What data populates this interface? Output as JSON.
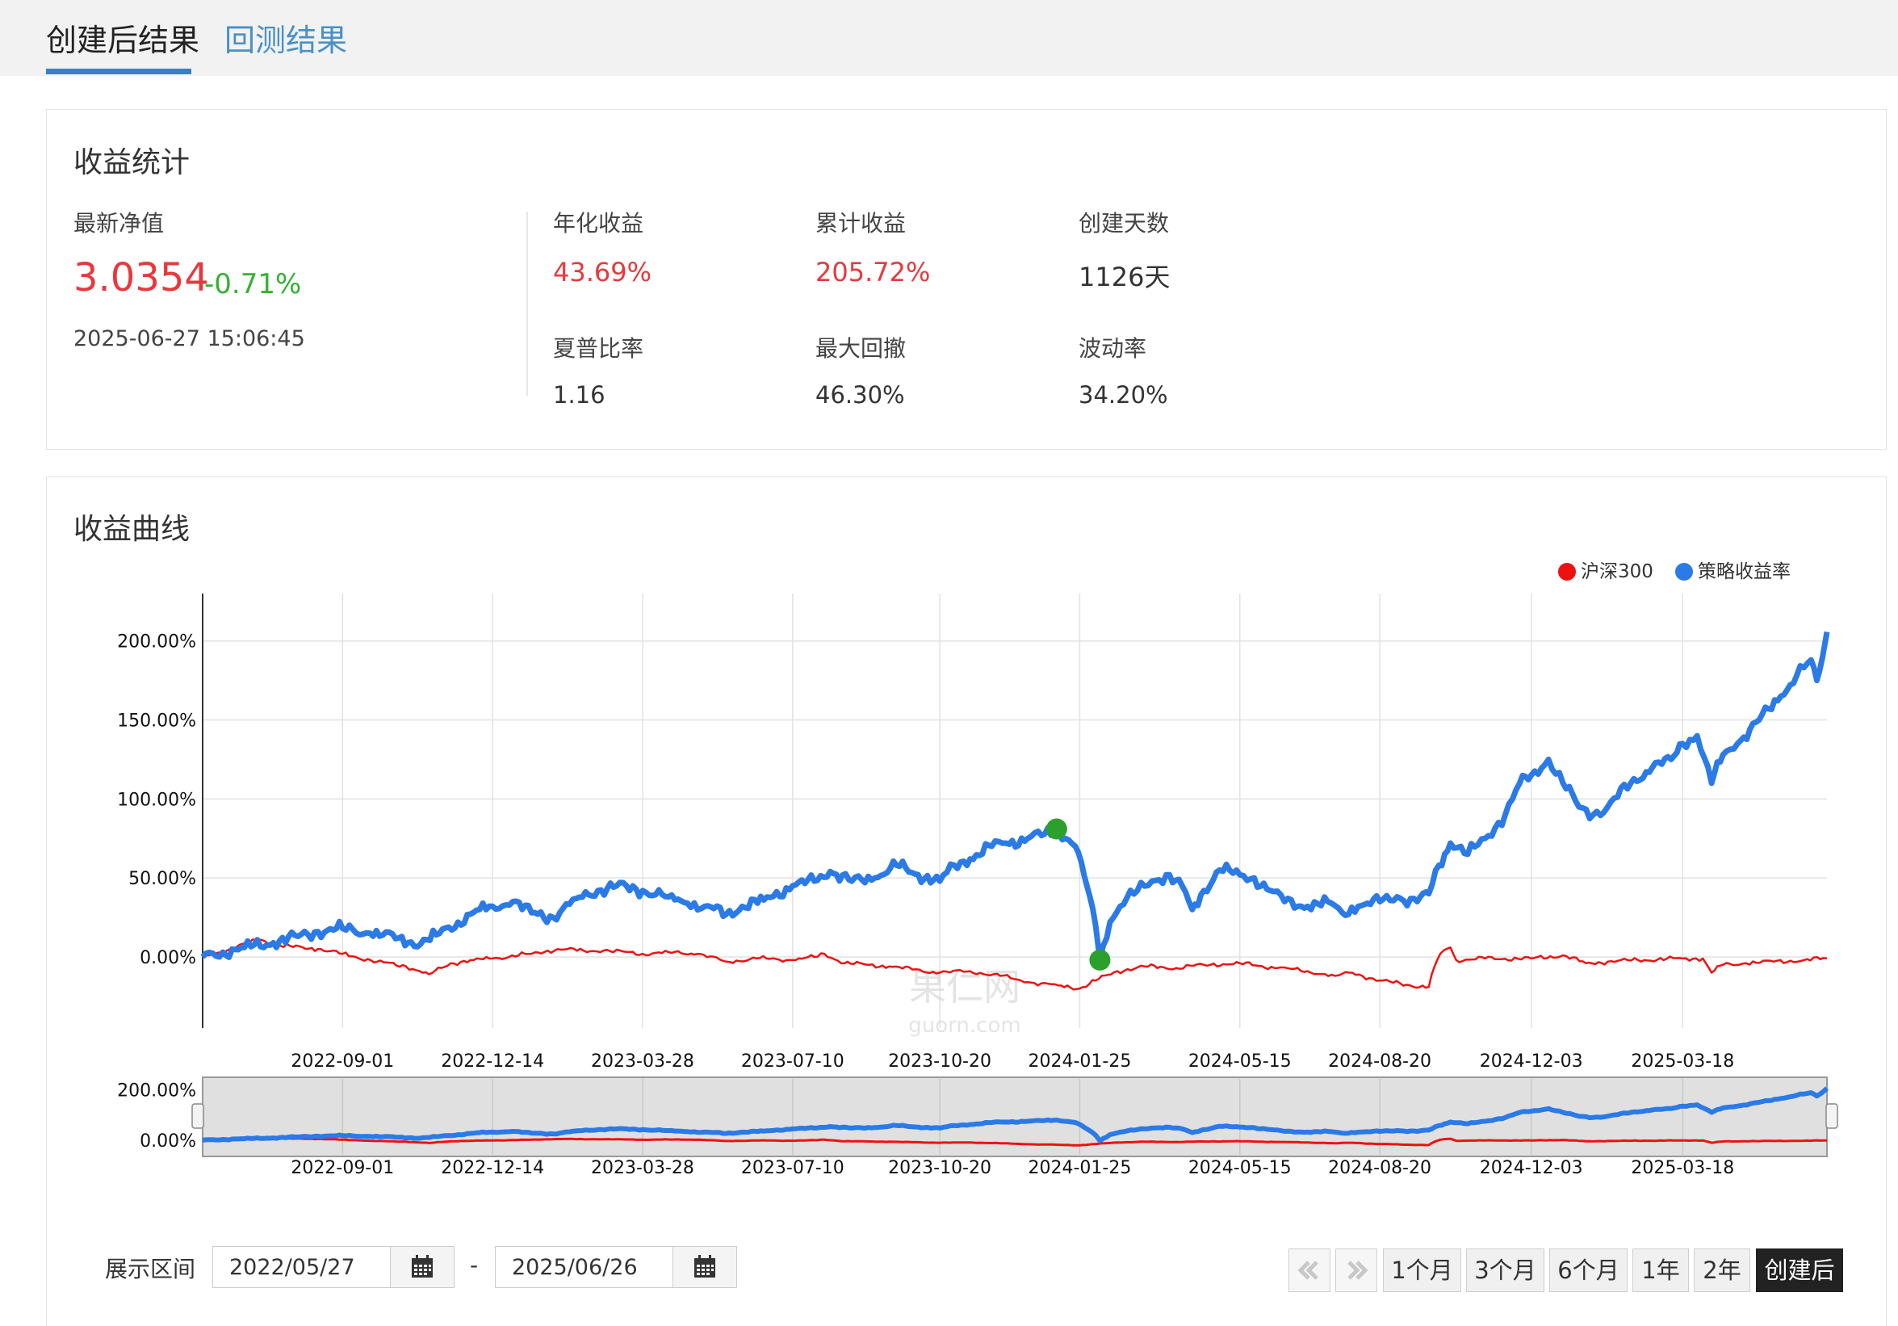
{
  "tabs": [
    {
      "label": "创建后结果",
      "active": true
    },
    {
      "label": "回测结果",
      "active": false
    }
  ],
  "stats": {
    "title": "收益统计",
    "nav_label": "最新净值",
    "nav_value": "3.0354",
    "nav_change": "-0.71%",
    "timestamp": "2025-06-27 15:06:45",
    "annual_return_label": "年化收益",
    "annual_return": "43.69%",
    "cumulative_label": "累计收益",
    "cumulative": "205.72%",
    "days_label": "创建天数",
    "days": "1126天",
    "sharpe_label": "夏普比率",
    "sharpe": "1.16",
    "max_dd_label": "最大回撤",
    "max_dd": "46.30%",
    "volatility_label": "波动率",
    "volatility": "34.20%"
  },
  "curve": {
    "title": "收益曲线",
    "legend": [
      {
        "name": "沪深300",
        "color": "#ee1111"
      },
      {
        "name": "策略收益率",
        "color": "#2b7ae6"
      }
    ],
    "watermark_cn": "果仁网",
    "watermark_en": "guorn.com"
  },
  "chart_data": {
    "type": "line",
    "x_ticks": [
      "2022-09-01",
      "2022-12-14",
      "2023-03-28",
      "2023-07-10",
      "2023-10-20",
      "2024-01-25",
      "2024-05-15",
      "2024-08-20",
      "2024-12-03",
      "2025-03-18"
    ],
    "y_ticks": [
      "200.00%",
      "150.00%",
      "100.00%",
      "50.00%",
      "0.00%"
    ],
    "navigator_y_ticks": [
      "200.00%",
      "0.00%"
    ],
    "x_range": [
      "2022-05-27",
      "2025-06-26"
    ],
    "ylim": [
      -45,
      230
    ],
    "grid": true,
    "legend_position": "top-right",
    "series": [
      {
        "name": "沪深300",
        "color": "#ee1111",
        "points": [
          [
            "2022-05-27",
            0
          ],
          [
            "2022-06-15",
            5
          ],
          [
            "2022-07-05",
            11
          ],
          [
            "2022-07-20",
            7
          ],
          [
            "2022-08-15",
            5
          ],
          [
            "2022-09-01",
            2
          ],
          [
            "2022-09-25",
            -3
          ],
          [
            "2022-10-15",
            -6
          ],
          [
            "2022-10-31",
            -11
          ],
          [
            "2022-11-15",
            -4
          ],
          [
            "2022-12-01",
            -2
          ],
          [
            "2022-12-14",
            -1
          ],
          [
            "2023-01-10",
            2
          ],
          [
            "2023-01-28",
            5
          ],
          [
            "2023-02-15",
            4
          ],
          [
            "2023-03-01",
            4
          ],
          [
            "2023-03-28",
            2
          ],
          [
            "2023-04-15",
            3
          ],
          [
            "2023-05-05",
            2
          ],
          [
            "2023-05-25",
            -3
          ],
          [
            "2023-06-15",
            -1
          ],
          [
            "2023-07-10",
            -2
          ],
          [
            "2023-07-25",
            0
          ],
          [
            "2023-08-01",
            2
          ],
          [
            "2023-08-15",
            -4
          ],
          [
            "2023-09-01",
            -5
          ],
          [
            "2023-09-15",
            -6
          ],
          [
            "2023-10-01",
            -8
          ],
          [
            "2023-10-20",
            -10
          ],
          [
            "2023-11-10",
            -9
          ],
          [
            "2023-12-01",
            -12
          ],
          [
            "2023-12-20",
            -16
          ],
          [
            "2024-01-10",
            -18
          ],
          [
            "2024-01-25",
            -20
          ],
          [
            "2024-02-05",
            -15
          ],
          [
            "2024-02-20",
            -9
          ],
          [
            "2024-03-10",
            -6
          ],
          [
            "2024-04-01",
            -7
          ],
          [
            "2024-04-20",
            -5
          ],
          [
            "2024-05-15",
            -4
          ],
          [
            "2024-06-10",
            -7
          ],
          [
            "2024-07-01",
            -9
          ],
          [
            "2024-07-20",
            -12
          ],
          [
            "2024-08-01",
            -10
          ],
          [
            "2024-08-20",
            -15
          ],
          [
            "2024-09-10",
            -18
          ],
          [
            "2024-09-23",
            -19
          ],
          [
            "2024-09-27",
            -6
          ],
          [
            "2024-10-01",
            2
          ],
          [
            "2024-10-08",
            6
          ],
          [
            "2024-10-12",
            -2
          ],
          [
            "2024-11-01",
            -1
          ],
          [
            "2024-12-03",
            -1
          ],
          [
            "2024-12-25",
            1
          ],
          [
            "2025-01-10",
            -4
          ],
          [
            "2025-01-25",
            -3
          ],
          [
            "2025-02-15",
            -2
          ],
          [
            "2025-03-18",
            -1
          ],
          [
            "2025-04-01",
            -1
          ],
          [
            "2025-04-07",
            -10
          ],
          [
            "2025-04-15",
            -5
          ],
          [
            "2025-05-01",
            -4
          ],
          [
            "2025-05-20",
            -3
          ],
          [
            "2025-06-10",
            -2
          ],
          [
            "2025-06-26",
            -1
          ]
        ]
      },
      {
        "name": "策略收益率",
        "color": "#2b7ae6",
        "points": [
          [
            "2022-05-27",
            0
          ],
          [
            "2022-06-10",
            3
          ],
          [
            "2022-06-25",
            6
          ],
          [
            "2022-07-15",
            9
          ],
          [
            "2022-08-01",
            13
          ],
          [
            "2022-08-15",
            16
          ],
          [
            "2022-09-01",
            18
          ],
          [
            "2022-09-20",
            15
          ],
          [
            "2022-10-10",
            12
          ],
          [
            "2022-10-25",
            8
          ],
          [
            "2022-11-05",
            14
          ],
          [
            "2022-11-20",
            22
          ],
          [
            "2022-12-05",
            30
          ],
          [
            "2022-12-14",
            32
          ],
          [
            "2022-12-28",
            35
          ],
          [
            "2023-01-10",
            28
          ],
          [
            "2023-01-25",
            25
          ],
          [
            "2023-02-10",
            37
          ],
          [
            "2023-02-25",
            42
          ],
          [
            "2023-03-10",
            45
          ],
          [
            "2023-03-28",
            42
          ],
          [
            "2023-04-15",
            38
          ],
          [
            "2023-04-28",
            34
          ],
          [
            "2023-05-10",
            32
          ],
          [
            "2023-05-25",
            27
          ],
          [
            "2023-06-05",
            32
          ],
          [
            "2023-06-20",
            36
          ],
          [
            "2023-07-10",
            45
          ],
          [
            "2023-07-25",
            48
          ],
          [
            "2023-08-05",
            54
          ],
          [
            "2023-08-20",
            48
          ],
          [
            "2023-09-05",
            50
          ],
          [
            "2023-09-20",
            58
          ],
          [
            "2023-10-05",
            52
          ],
          [
            "2023-10-20",
            48
          ],
          [
            "2023-10-30",
            58
          ],
          [
            "2023-11-10",
            62
          ],
          [
            "2023-11-25",
            70
          ],
          [
            "2023-12-05",
            72
          ],
          [
            "2023-12-20",
            75
          ],
          [
            "2024-01-01",
            78
          ],
          [
            "2024-01-09",
            80
          ],
          [
            "2024-01-15",
            75
          ],
          [
            "2024-01-22",
            70
          ],
          [
            "2024-01-30",
            45
          ],
          [
            "2024-02-05",
            20
          ],
          [
            "2024-02-08",
            -2
          ],
          [
            "2024-02-15",
            22
          ],
          [
            "2024-02-22",
            32
          ],
          [
            "2024-03-05",
            42
          ],
          [
            "2024-03-15",
            48
          ],
          [
            "2024-03-25",
            52
          ],
          [
            "2024-04-05",
            45
          ],
          [
            "2024-04-12",
            30
          ],
          [
            "2024-04-20",
            42
          ],
          [
            "2024-05-01",
            55
          ],
          [
            "2024-05-15",
            52
          ],
          [
            "2024-05-25",
            50
          ],
          [
            "2024-06-05",
            42
          ],
          [
            "2024-06-15",
            35
          ],
          [
            "2024-07-01",
            32
          ],
          [
            "2024-07-15",
            35
          ],
          [
            "2024-07-25",
            28
          ],
          [
            "2024-08-05",
            32
          ],
          [
            "2024-08-20",
            35
          ],
          [
            "2024-09-01",
            38
          ],
          [
            "2024-09-15",
            35
          ],
          [
            "2024-09-23",
            40
          ],
          [
            "2024-09-30",
            58
          ],
          [
            "2024-10-08",
            72
          ],
          [
            "2024-10-20",
            65
          ],
          [
            "2024-11-01",
            75
          ],
          [
            "2024-11-15",
            90
          ],
          [
            "2024-11-25",
            110
          ],
          [
            "2024-12-03",
            115
          ],
          [
            "2024-12-15",
            125
          ],
          [
            "2024-12-25",
            110
          ],
          [
            "2025-01-05",
            95
          ],
          [
            "2025-01-15",
            90
          ],
          [
            "2025-01-25",
            95
          ],
          [
            "2025-02-10",
            110
          ],
          [
            "2025-02-25",
            120
          ],
          [
            "2025-03-10",
            125
          ],
          [
            "2025-03-18",
            135
          ],
          [
            "2025-03-28",
            140
          ],
          [
            "2025-04-07",
            110
          ],
          [
            "2025-04-15",
            128
          ],
          [
            "2025-04-25",
            135
          ],
          [
            "2025-05-10",
            150
          ],
          [
            "2025-05-25",
            165
          ],
          [
            "2025-06-05",
            178
          ],
          [
            "2025-06-15",
            188
          ],
          [
            "2025-06-19",
            175
          ],
          [
            "2025-06-23",
            190
          ],
          [
            "2025-06-26",
            205.72
          ]
        ]
      }
    ],
    "markers": [
      {
        "date": "2024-01-09",
        "value": 81,
        "color": "#2ca02c",
        "label": "peak"
      },
      {
        "date": "2024-02-08",
        "value": -2,
        "color": "#2ca02c",
        "label": "trough"
      }
    ]
  },
  "range": {
    "label": "展示区间",
    "start": "2022/05/27",
    "end": "2025/06/26",
    "separator": "-"
  },
  "periods": [
    {
      "label": "1个月",
      "active": false
    },
    {
      "label": "3个月",
      "active": false
    },
    {
      "label": "6个月",
      "active": false
    },
    {
      "label": "1年",
      "active": false
    },
    {
      "label": "2年",
      "active": false
    },
    {
      "label": "创建后",
      "active": true
    }
  ]
}
